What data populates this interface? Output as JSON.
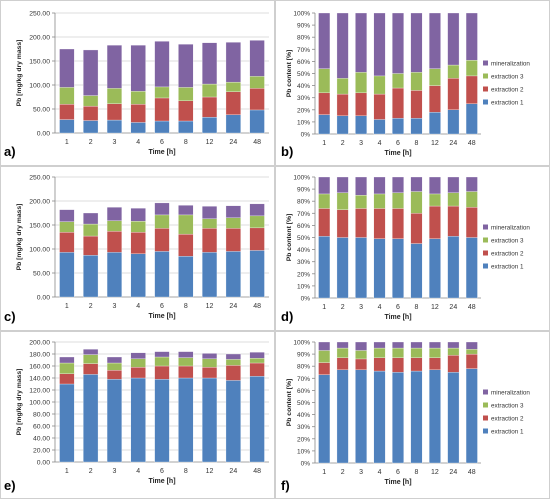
{
  "chart_data": [
    {
      "panel": "a)",
      "type": "bar",
      "stacked": true,
      "categories": [
        "1",
        "2",
        "3",
        "4",
        "6",
        "8",
        "12",
        "24",
        "48"
      ],
      "series": [
        {
          "name": "extraction 1",
          "color": "#4f81bd",
          "values": [
            28,
            26,
            27,
            22,
            25,
            25,
            33,
            38,
            48
          ]
        },
        {
          "name": "extraction 2",
          "color": "#c0504d",
          "values": [
            32,
            30,
            34,
            38,
            48,
            42,
            42,
            48,
            45
          ]
        },
        {
          "name": "extraction 3",
          "color": "#9bbb59",
          "values": [
            35,
            22,
            32,
            27,
            23,
            28,
            27,
            20,
            25
          ]
        },
        {
          "name": "mineralization",
          "color": "#8064a2",
          "values": [
            80,
            95,
            90,
            96,
            95,
            90,
            86,
            83,
            75
          ]
        }
      ],
      "xlabel": "Time [h]",
      "ylabel": "Pb [mg/kg dry mass]",
      "ylim": [
        0,
        250
      ],
      "yticks": [
        "0.00",
        "50.00",
        "100.00",
        "150.00",
        "200.00",
        "250.00"
      ],
      "grid": true
    },
    {
      "panel": "b)",
      "type": "bar",
      "stacked": true,
      "percent": true,
      "categories": [
        "1",
        "2",
        "3",
        "4",
        "6",
        "8",
        "12",
        "24",
        "48"
      ],
      "series": [
        {
          "name": "extraction 1",
          "color": "#4f81bd",
          "values": [
            16,
            15,
            15,
            12,
            13,
            13,
            18,
            20,
            25
          ]
        },
        {
          "name": "extraction 2",
          "color": "#c0504d",
          "values": [
            18,
            18,
            19,
            21,
            25,
            23,
            22,
            26,
            23
          ]
        },
        {
          "name": "extraction 3",
          "color": "#9bbb59",
          "values": [
            20,
            13,
            17,
            15,
            12,
            15,
            14,
            11,
            13
          ]
        },
        {
          "name": "mineralization",
          "color": "#8064a2",
          "values": [
            46,
            54,
            49,
            52,
            50,
            49,
            46,
            43,
            39
          ]
        }
      ],
      "xlabel": "Time [h]",
      "ylabel": "Pb content [%]",
      "ylim": [
        0,
        100
      ],
      "yticks": [
        "0%",
        "10%",
        "20%",
        "30%",
        "40%",
        "50%",
        "60%",
        "70%",
        "80%",
        "90%",
        "100%"
      ],
      "legend": "right"
    },
    {
      "panel": "c)",
      "type": "bar",
      "stacked": true,
      "categories": [
        "1",
        "2",
        "3",
        "4",
        "6",
        "8",
        "12",
        "24",
        "48"
      ],
      "series": [
        {
          "name": "extraction 1",
          "color": "#4f81bd",
          "values": [
            93,
            87,
            93,
            90,
            95,
            85,
            93,
            95,
            97
          ]
        },
        {
          "name": "extraction 2",
          "color": "#c0504d",
          "values": [
            42,
            40,
            44,
            45,
            48,
            46,
            50,
            48,
            47
          ]
        },
        {
          "name": "extraction 3",
          "color": "#9bbb59",
          "values": [
            22,
            25,
            22,
            23,
            28,
            40,
            20,
            22,
            25
          ]
        },
        {
          "name": "mineralization",
          "color": "#8064a2",
          "values": [
            25,
            23,
            28,
            27,
            25,
            20,
            26,
            25,
            25
          ]
        }
      ],
      "xlabel": "Time [h]",
      "ylabel": "Pb [mg/kg dry mass]",
      "ylim": [
        0,
        250
      ],
      "yticks": [
        "0.00",
        "50.00",
        "100.00",
        "150.00",
        "200.00",
        "250.00"
      ],
      "grid": true
    },
    {
      "panel": "d)",
      "type": "bar",
      "stacked": true,
      "percent": true,
      "categories": [
        "1",
        "2",
        "3",
        "4",
        "6",
        "8",
        "12",
        "24",
        "48"
      ],
      "series": [
        {
          "name": "extraction 1",
          "color": "#4f81bd",
          "values": [
            51,
            50,
            50,
            49,
            49,
            45,
            49,
            51,
            50
          ]
        },
        {
          "name": "extraction 2",
          "color": "#c0504d",
          "values": [
            23,
            23,
            24,
            25,
            25,
            25,
            27,
            25,
            25
          ]
        },
        {
          "name": "extraction 3",
          "color": "#9bbb59",
          "values": [
            12,
            14,
            11,
            12,
            13,
            18,
            10,
            11,
            13
          ]
        },
        {
          "name": "mineralization",
          "color": "#8064a2",
          "values": [
            14,
            13,
            15,
            14,
            13,
            12,
            14,
            13,
            12
          ]
        }
      ],
      "xlabel": "Time [h]",
      "ylabel": "Pb content [%]",
      "ylim": [
        0,
        100
      ],
      "yticks": [
        "0%",
        "10%",
        "20%",
        "30%",
        "40%",
        "50%",
        "60%",
        "70%",
        "80%",
        "90%",
        "100%"
      ],
      "legend": "right"
    },
    {
      "panel": "e)",
      "type": "bar",
      "stacked": true,
      "categories": [
        "1",
        "2",
        "3",
        "4",
        "6",
        "8",
        "12",
        "24",
        "48"
      ],
      "series": [
        {
          "name": "extraction 1",
          "color": "#4f81bd",
          "values": [
            130,
            146,
            138,
            140,
            138,
            140,
            140,
            136,
            143
          ]
        },
        {
          "name": "extraction 2",
          "color": "#c0504d",
          "values": [
            17,
            18,
            15,
            18,
            22,
            20,
            18,
            25,
            22
          ]
        },
        {
          "name": "extraction 3",
          "color": "#9bbb59",
          "values": [
            18,
            15,
            12,
            14,
            15,
            14,
            14,
            10,
            8
          ]
        },
        {
          "name": "mineralization",
          "color": "#8064a2",
          "values": [
            10,
            9,
            10,
            10,
            9,
            10,
            9,
            9,
            10
          ]
        }
      ],
      "xlabel": "Time [h]",
      "ylabel": "Pb [mg/kg dry mass]",
      "ylim": [
        0,
        200
      ],
      "yticks": [
        "0.00",
        "20.00",
        "40.00",
        "60.00",
        "80.00",
        "100.00",
        "120.00",
        "140.00",
        "160.00",
        "180.00",
        "200.00"
      ],
      "grid": true
    },
    {
      "panel": "f)",
      "type": "bar",
      "stacked": true,
      "percent": true,
      "categories": [
        "1",
        "2",
        "3",
        "4",
        "6",
        "8",
        "12",
        "24",
        "48"
      ],
      "series": [
        {
          "name": "extraction 1",
          "color": "#4f81bd",
          "values": [
            73,
            77,
            77,
            76,
            75,
            76,
            77,
            75,
            78
          ]
        },
        {
          "name": "extraction 2",
          "color": "#c0504d",
          "values": [
            10,
            10,
            9,
            11,
            12,
            11,
            10,
            14,
            12
          ]
        },
        {
          "name": "extraction 3",
          "color": "#9bbb59",
          "values": [
            10,
            8,
            7,
            8,
            8,
            8,
            8,
            6,
            4
          ]
        },
        {
          "name": "mineralization",
          "color": "#8064a2",
          "values": [
            7,
            5,
            7,
            5,
            5,
            5,
            5,
            5,
            6
          ]
        }
      ],
      "xlabel": "Time [h]",
      "ylabel": "Pb content [%]",
      "ylim": [
        0,
        100
      ],
      "yticks": [
        "0%",
        "10%",
        "20%",
        "30%",
        "40%",
        "50%",
        "60%",
        "70%",
        "80%",
        "90%",
        "100%"
      ],
      "legend": "right"
    }
  ]
}
